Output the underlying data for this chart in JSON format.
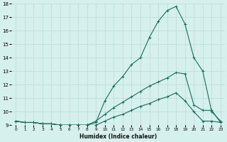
{
  "xlabel": "Humidex (Indice chaleur)",
  "bg_color": "#d6f0ee",
  "grid_color": "#b8dbd8",
  "line_color": "#1a6b5a",
  "xlim": [
    -0.5,
    23.5
  ],
  "ylim": [
    9,
    18
  ],
  "yticks": [
    9,
    10,
    11,
    12,
    13,
    14,
    15,
    16,
    17,
    18
  ],
  "xticks": [
    0,
    1,
    2,
    3,
    4,
    5,
    6,
    7,
    8,
    9,
    10,
    11,
    12,
    13,
    14,
    15,
    16,
    17,
    18,
    19,
    20,
    21,
    22,
    23
  ],
  "curves": [
    {
      "x": [
        0,
        1,
        2,
        3,
        4,
        5,
        6,
        7,
        8,
        9,
        10,
        11,
        12,
        13,
        14,
        15,
        16,
        17,
        18,
        19,
        20,
        21,
        22,
        23
      ],
      "y": [
        9.3,
        9.2,
        9.2,
        9.1,
        9.1,
        9.0,
        9.0,
        9.0,
        9.0,
        9.0,
        9.3,
        9.6,
        9.8,
        10.1,
        10.4,
        10.6,
        10.9,
        11.1,
        11.4,
        10.8,
        10.0,
        9.3,
        9.3,
        9.2
      ]
    },
    {
      "x": [
        0,
        1,
        2,
        3,
        4,
        5,
        6,
        7,
        8,
        9,
        10,
        11,
        12,
        13,
        14,
        15,
        16,
        17,
        18,
        19,
        20,
        21,
        22,
        23
      ],
      "y": [
        9.3,
        9.2,
        9.2,
        9.1,
        9.1,
        9.0,
        9.0,
        9.0,
        9.0,
        9.3,
        9.8,
        10.3,
        10.7,
        11.1,
        11.5,
        11.9,
        12.2,
        12.5,
        12.9,
        12.8,
        10.5,
        10.1,
        10.1,
        9.2
      ]
    },
    {
      "x": [
        0,
        1,
        2,
        3,
        4,
        5,
        6,
        7,
        8,
        9,
        10,
        11,
        12,
        13,
        14,
        15,
        16,
        17,
        18,
        19,
        20,
        21,
        22,
        23
      ],
      "y": [
        9.3,
        9.2,
        9.2,
        9.1,
        9.1,
        9.0,
        9.0,
        9.0,
        9.0,
        9.2,
        10.8,
        11.9,
        12.6,
        13.5,
        14.0,
        15.5,
        16.7,
        17.5,
        17.8,
        16.5,
        14.0,
        13.0,
        10.0,
        9.3
      ]
    }
  ]
}
